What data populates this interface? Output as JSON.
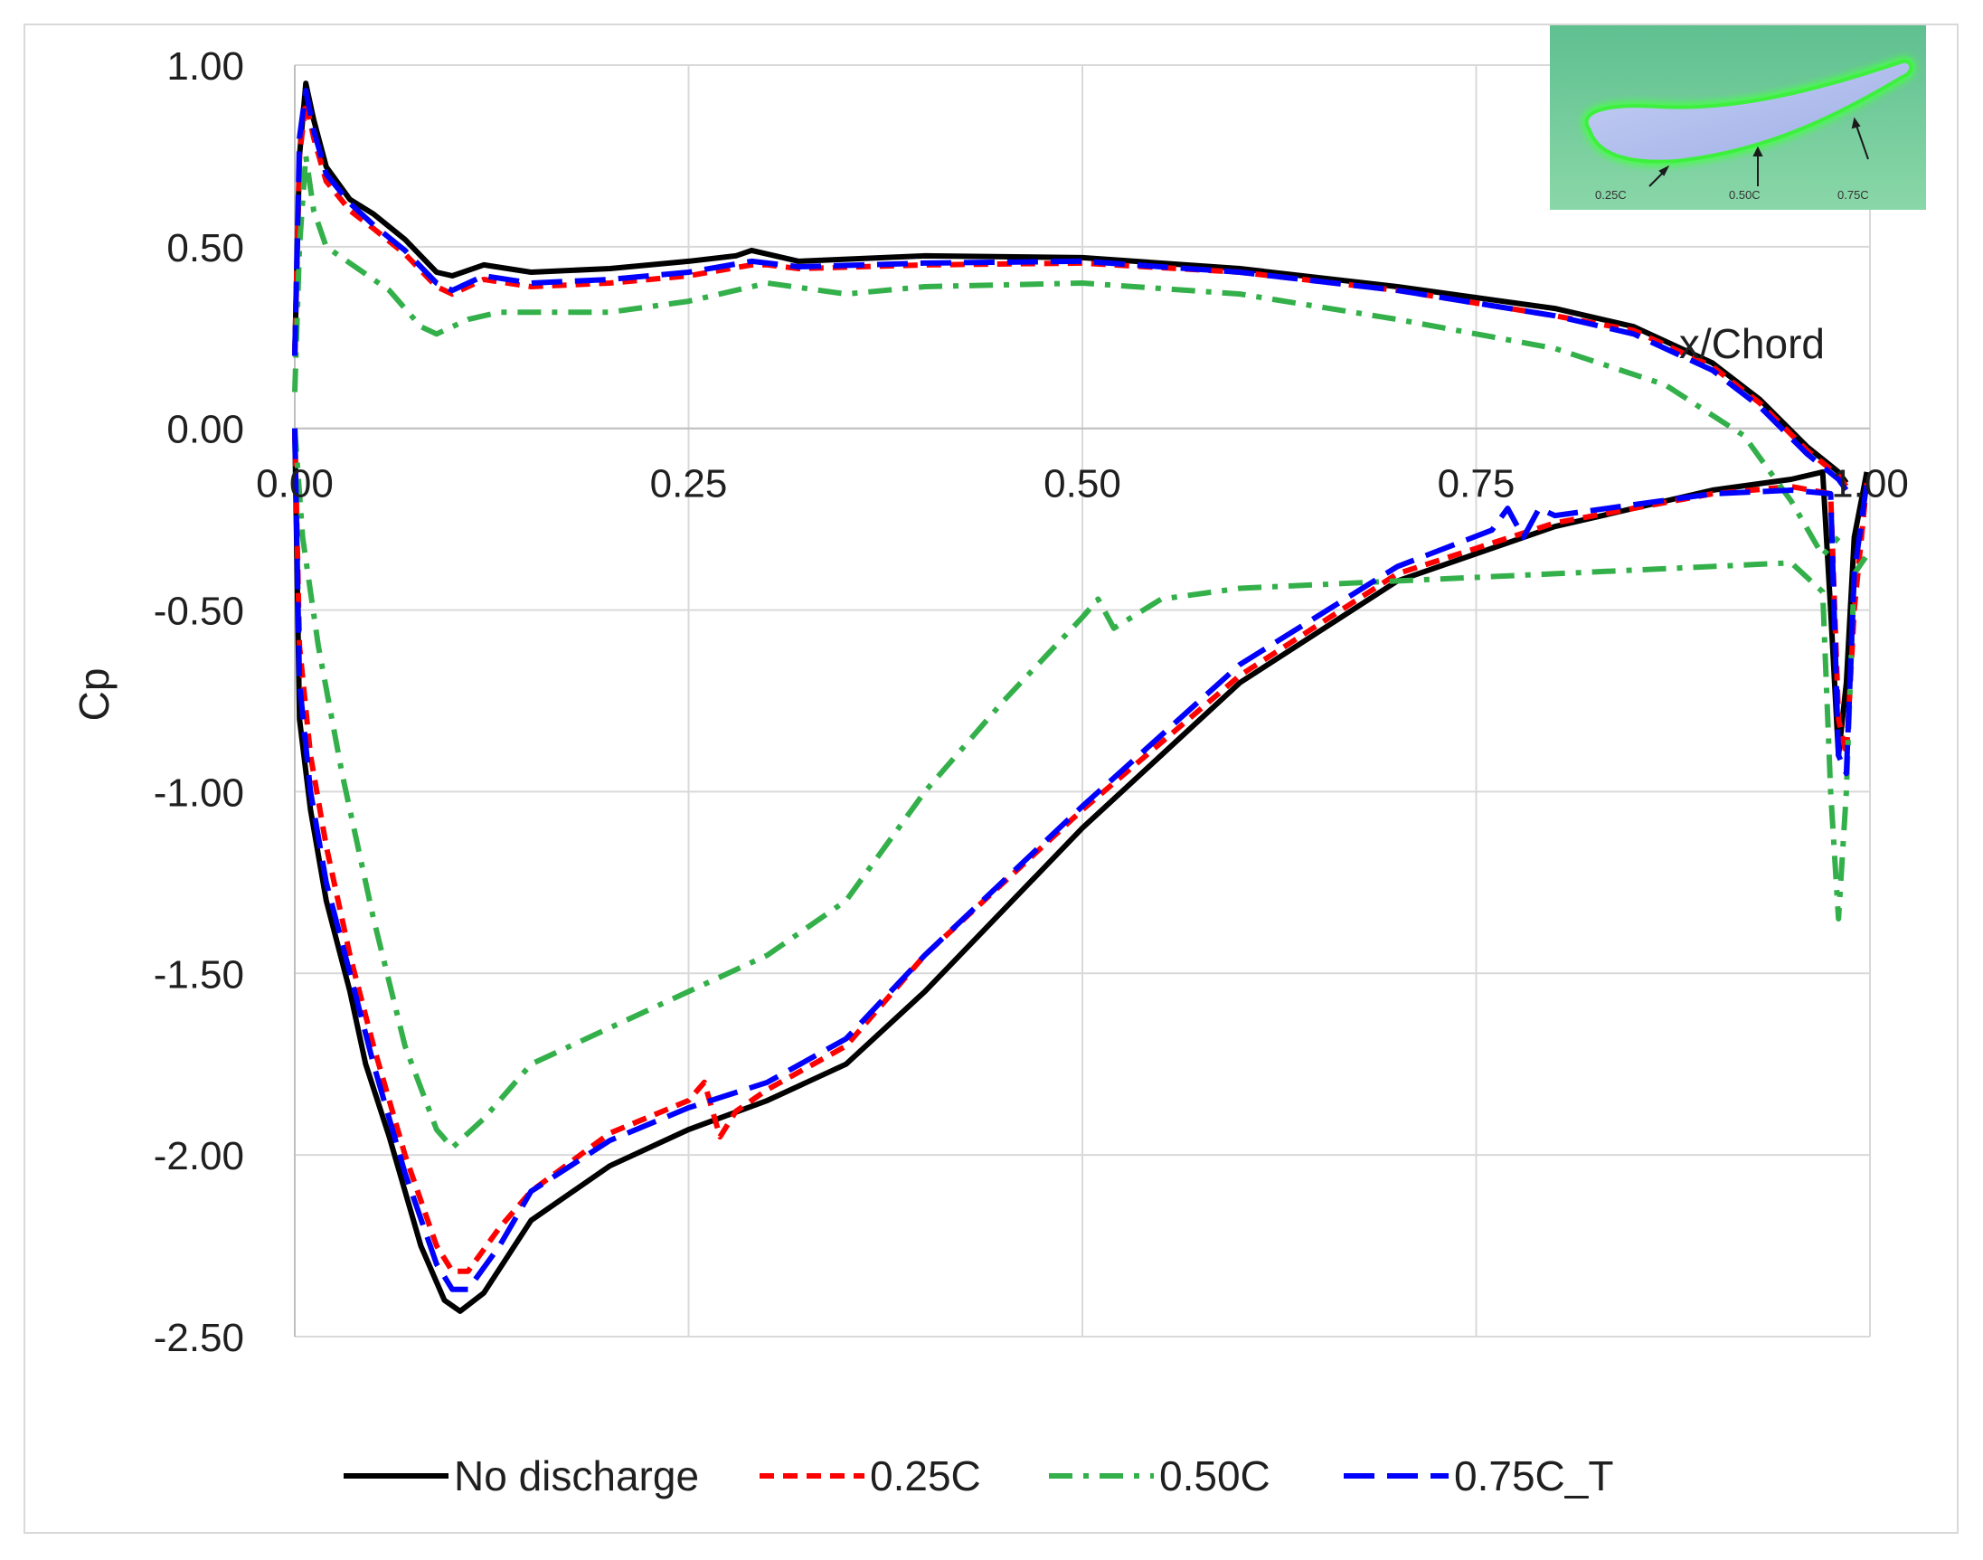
{
  "chart_data": {
    "type": "line",
    "xlabel": "x/Chord",
    "ylabel": "Cp",
    "xlim": [
      0,
      1
    ],
    "ylim": [
      -2.5,
      1.0
    ],
    "x_ticks": [
      "0.00",
      "0.25",
      "0.50",
      "0.75",
      "1.00"
    ],
    "y_ticks": [
      "1.00",
      "0.50",
      "0.00",
      "-0.50",
      "-1.00",
      "-1.50",
      "-2.00",
      "-2.50"
    ],
    "grid": true,
    "legend_position": "bottom",
    "series": [
      {
        "name": "No discharge",
        "color": "#000000",
        "dash": "solid",
        "upper": [
          [
            0.0,
            0.2
          ],
          [
            0.003,
            0.75
          ],
          [
            0.007,
            0.95
          ],
          [
            0.012,
            0.85
          ],
          [
            0.02,
            0.72
          ],
          [
            0.035,
            0.63
          ],
          [
            0.05,
            0.59
          ],
          [
            0.07,
            0.52
          ],
          [
            0.09,
            0.43
          ],
          [
            0.1,
            0.42
          ],
          [
            0.12,
            0.45
          ],
          [
            0.15,
            0.43
          ],
          [
            0.2,
            0.44
          ],
          [
            0.25,
            0.46
          ],
          [
            0.28,
            0.475
          ],
          [
            0.29,
            0.49
          ],
          [
            0.3,
            0.48
          ],
          [
            0.32,
            0.46
          ],
          [
            0.4,
            0.475
          ],
          [
            0.5,
            0.47
          ],
          [
            0.6,
            0.44
          ],
          [
            0.7,
            0.39
          ],
          [
            0.8,
            0.33
          ],
          [
            0.85,
            0.28
          ],
          [
            0.9,
            0.18
          ],
          [
            0.93,
            0.08
          ],
          [
            0.96,
            -0.05
          ],
          [
            0.98,
            -0.12
          ],
          [
            0.985,
            -0.15
          ]
        ],
        "lower": [
          [
            0.0,
            0.0
          ],
          [
            0.003,
            -0.8
          ],
          [
            0.01,
            -1.05
          ],
          [
            0.02,
            -1.3
          ],
          [
            0.035,
            -1.55
          ],
          [
            0.045,
            -1.75
          ],
          [
            0.06,
            -1.95
          ],
          [
            0.08,
            -2.25
          ],
          [
            0.095,
            -2.4
          ],
          [
            0.105,
            -2.43
          ],
          [
            0.12,
            -2.38
          ],
          [
            0.15,
            -2.18
          ],
          [
            0.2,
            -2.03
          ],
          [
            0.25,
            -1.93
          ],
          [
            0.3,
            -1.85
          ],
          [
            0.35,
            -1.75
          ],
          [
            0.4,
            -1.55
          ],
          [
            0.5,
            -1.1
          ],
          [
            0.6,
            -0.7
          ],
          [
            0.7,
            -0.42
          ],
          [
            0.8,
            -0.27
          ],
          [
            0.9,
            -0.17
          ],
          [
            0.95,
            -0.14
          ],
          [
            0.97,
            -0.12
          ],
          [
            0.975,
            -0.5
          ],
          [
            0.98,
            -0.9
          ],
          [
            0.985,
            -0.7
          ],
          [
            0.99,
            -0.3
          ],
          [
            0.998,
            -0.12
          ]
        ]
      },
      {
        "name": "0.25C",
        "color": "#ff0000",
        "dash": "dashed",
        "upper": [
          [
            0.0,
            0.2
          ],
          [
            0.003,
            0.75
          ],
          [
            0.007,
            0.9
          ],
          [
            0.012,
            0.8
          ],
          [
            0.02,
            0.68
          ],
          [
            0.035,
            0.6
          ],
          [
            0.05,
            0.55
          ],
          [
            0.07,
            0.48
          ],
          [
            0.09,
            0.39
          ],
          [
            0.1,
            0.37
          ],
          [
            0.12,
            0.41
          ],
          [
            0.15,
            0.39
          ],
          [
            0.2,
            0.4
          ],
          [
            0.25,
            0.42
          ],
          [
            0.29,
            0.45
          ],
          [
            0.3,
            0.45
          ],
          [
            0.32,
            0.44
          ],
          [
            0.4,
            0.45
          ],
          [
            0.5,
            0.455
          ],
          [
            0.6,
            0.43
          ],
          [
            0.7,
            0.38
          ],
          [
            0.8,
            0.31
          ],
          [
            0.85,
            0.27
          ],
          [
            0.9,
            0.17
          ],
          [
            0.93,
            0.07
          ],
          [
            0.96,
            -0.06
          ],
          [
            0.98,
            -0.13
          ],
          [
            0.985,
            -0.16
          ]
        ],
        "lower": [
          [
            0.0,
            0.0
          ],
          [
            0.003,
            -0.6
          ],
          [
            0.01,
            -0.9
          ],
          [
            0.02,
            -1.15
          ],
          [
            0.035,
            -1.45
          ],
          [
            0.05,
            -1.7
          ],
          [
            0.07,
            -2.0
          ],
          [
            0.09,
            -2.25
          ],
          [
            0.1,
            -2.32
          ],
          [
            0.11,
            -2.32
          ],
          [
            0.13,
            -2.2
          ],
          [
            0.15,
            -2.1
          ],
          [
            0.2,
            -1.94
          ],
          [
            0.25,
            -1.85
          ],
          [
            0.26,
            -1.8
          ],
          [
            0.27,
            -1.95
          ],
          [
            0.28,
            -1.88
          ],
          [
            0.3,
            -1.82
          ],
          [
            0.35,
            -1.7
          ],
          [
            0.4,
            -1.45
          ],
          [
            0.5,
            -1.05
          ],
          [
            0.6,
            -0.68
          ],
          [
            0.7,
            -0.4
          ],
          [
            0.8,
            -0.26
          ],
          [
            0.9,
            -0.18
          ],
          [
            0.95,
            -0.16
          ],
          [
            0.975,
            -0.18
          ],
          [
            0.98,
            -0.8
          ],
          [
            0.985,
            -0.9
          ],
          [
            0.99,
            -0.5
          ],
          [
            0.998,
            -0.15
          ]
        ]
      },
      {
        "name": "0.50C",
        "color": "#33b04a",
        "dash": "dash-dot",
        "upper": [
          [
            0.0,
            0.1
          ],
          [
            0.003,
            0.5
          ],
          [
            0.007,
            0.75
          ],
          [
            0.012,
            0.6
          ],
          [
            0.02,
            0.5
          ],
          [
            0.04,
            0.44
          ],
          [
            0.06,
            0.38
          ],
          [
            0.08,
            0.28
          ],
          [
            0.09,
            0.26
          ],
          [
            0.11,
            0.3
          ],
          [
            0.13,
            0.32
          ],
          [
            0.2,
            0.32
          ],
          [
            0.25,
            0.35
          ],
          [
            0.3,
            0.4
          ],
          [
            0.35,
            0.37
          ],
          [
            0.4,
            0.39
          ],
          [
            0.5,
            0.4
          ],
          [
            0.6,
            0.37
          ],
          [
            0.7,
            0.3
          ],
          [
            0.8,
            0.22
          ],
          [
            0.87,
            0.12
          ],
          [
            0.92,
            -0.02
          ],
          [
            0.95,
            -0.2
          ],
          [
            0.97,
            -0.35
          ],
          [
            0.98,
            -0.3
          ]
        ],
        "lower": [
          [
            0.0,
            0.0
          ],
          [
            0.005,
            -0.3
          ],
          [
            0.015,
            -0.6
          ],
          [
            0.03,
            -0.95
          ],
          [
            0.05,
            -1.35
          ],
          [
            0.07,
            -1.7
          ],
          [
            0.09,
            -1.93
          ],
          [
            0.1,
            -1.98
          ],
          [
            0.12,
            -1.9
          ],
          [
            0.15,
            -1.75
          ],
          [
            0.2,
            -1.65
          ],
          [
            0.25,
            -1.55
          ],
          [
            0.3,
            -1.45
          ],
          [
            0.35,
            -1.3
          ],
          [
            0.4,
            -1.0
          ],
          [
            0.45,
            -0.75
          ],
          [
            0.5,
            -0.52
          ],
          [
            0.51,
            -0.47
          ],
          [
            0.52,
            -0.55
          ],
          [
            0.55,
            -0.47
          ],
          [
            0.6,
            -0.44
          ],
          [
            0.7,
            -0.42
          ],
          [
            0.8,
            -0.4
          ],
          [
            0.9,
            -0.38
          ],
          [
            0.95,
            -0.37
          ],
          [
            0.97,
            -0.45
          ],
          [
            0.975,
            -1.0
          ],
          [
            0.98,
            -1.35
          ],
          [
            0.985,
            -1.0
          ],
          [
            0.99,
            -0.4
          ],
          [
            0.998,
            -0.35
          ]
        ]
      },
      {
        "name": "0.75C_T",
        "color": "#0000ff",
        "dash": "long-dash",
        "upper": [
          [
            0.0,
            0.2
          ],
          [
            0.003,
            0.8
          ],
          [
            0.007,
            0.93
          ],
          [
            0.012,
            0.82
          ],
          [
            0.02,
            0.7
          ],
          [
            0.035,
            0.62
          ],
          [
            0.05,
            0.56
          ],
          [
            0.07,
            0.49
          ],
          [
            0.09,
            0.4
          ],
          [
            0.1,
            0.38
          ],
          [
            0.12,
            0.42
          ],
          [
            0.15,
            0.4
          ],
          [
            0.2,
            0.41
          ],
          [
            0.25,
            0.43
          ],
          [
            0.29,
            0.46
          ],
          [
            0.3,
            0.455
          ],
          [
            0.32,
            0.445
          ],
          [
            0.4,
            0.455
          ],
          [
            0.5,
            0.46
          ],
          [
            0.6,
            0.43
          ],
          [
            0.7,
            0.38
          ],
          [
            0.8,
            0.31
          ],
          [
            0.85,
            0.26
          ],
          [
            0.9,
            0.16
          ],
          [
            0.93,
            0.06
          ],
          [
            0.96,
            -0.07
          ],
          [
            0.98,
            -0.14
          ],
          [
            0.985,
            -0.17
          ]
        ],
        "lower": [
          [
            0.0,
            0.0
          ],
          [
            0.003,
            -0.7
          ],
          [
            0.01,
            -1.0
          ],
          [
            0.02,
            -1.25
          ],
          [
            0.035,
            -1.5
          ],
          [
            0.05,
            -1.75
          ],
          [
            0.07,
            -2.05
          ],
          [
            0.09,
            -2.3
          ],
          [
            0.1,
            -2.37
          ],
          [
            0.11,
            -2.37
          ],
          [
            0.13,
            -2.25
          ],
          [
            0.15,
            -2.1
          ],
          [
            0.2,
            -1.96
          ],
          [
            0.25,
            -1.87
          ],
          [
            0.3,
            -1.8
          ],
          [
            0.35,
            -1.68
          ],
          [
            0.4,
            -1.45
          ],
          [
            0.5,
            -1.04
          ],
          [
            0.6,
            -0.65
          ],
          [
            0.7,
            -0.38
          ],
          [
            0.76,
            -0.28
          ],
          [
            0.77,
            -0.22
          ],
          [
            0.78,
            -0.3
          ],
          [
            0.79,
            -0.22
          ],
          [
            0.8,
            -0.24
          ],
          [
            0.9,
            -0.18
          ],
          [
            0.95,
            -0.17
          ],
          [
            0.975,
            -0.18
          ],
          [
            0.98,
            -0.9
          ],
          [
            0.985,
            -0.95
          ],
          [
            0.99,
            -0.4
          ],
          [
            0.998,
            -0.15
          ]
        ]
      }
    ],
    "inset": {
      "description_labels": [
        "0.25C",
        "0.50C",
        "0.75C"
      ],
      "colors": {
        "background": "#72c99b",
        "airfoil_fill": "#aab8ea",
        "airfoil_edge": "#44ff44"
      }
    }
  }
}
